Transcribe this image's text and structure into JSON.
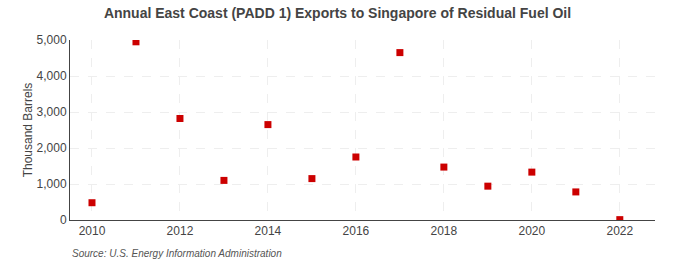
{
  "chart_data": {
    "type": "scatter",
    "title": "Annual East Coast (PADD 1) Exports to Singapore of Residual Fuel Oil",
    "y_label": "Thousand Barrels",
    "annotations": [
      "Source: U.S. Energy Information Administration"
    ],
    "x": [
      2010,
      2011,
      2012,
      2013,
      2014,
      2015,
      2016,
      2017,
      2018,
      2019,
      2020,
      2021,
      2022
    ],
    "values": [
      480,
      4950,
      2820,
      1100,
      2650,
      1150,
      1750,
      4650,
      1470,
      940,
      1330,
      780,
      10
    ],
    "color": "#cc0000",
    "marker": "square",
    "xlim": [
      2009.5,
      2022.8
    ],
    "xticks": [
      2010,
      2012,
      2014,
      2016,
      2018,
      2020,
      2022
    ],
    "ylim": [
      0,
      5000
    ],
    "yticks": [
      0,
      {
        "value": 1000,
        "label": "1,000"
      },
      {
        "value": 2000,
        "label": "2,000"
      },
      {
        "value": 3000,
        "label": "3,000"
      },
      {
        "value": 4000,
        "label": "4,000"
      },
      {
        "value": 5000,
        "label": "5,000"
      }
    ],
    "grid": true
  }
}
